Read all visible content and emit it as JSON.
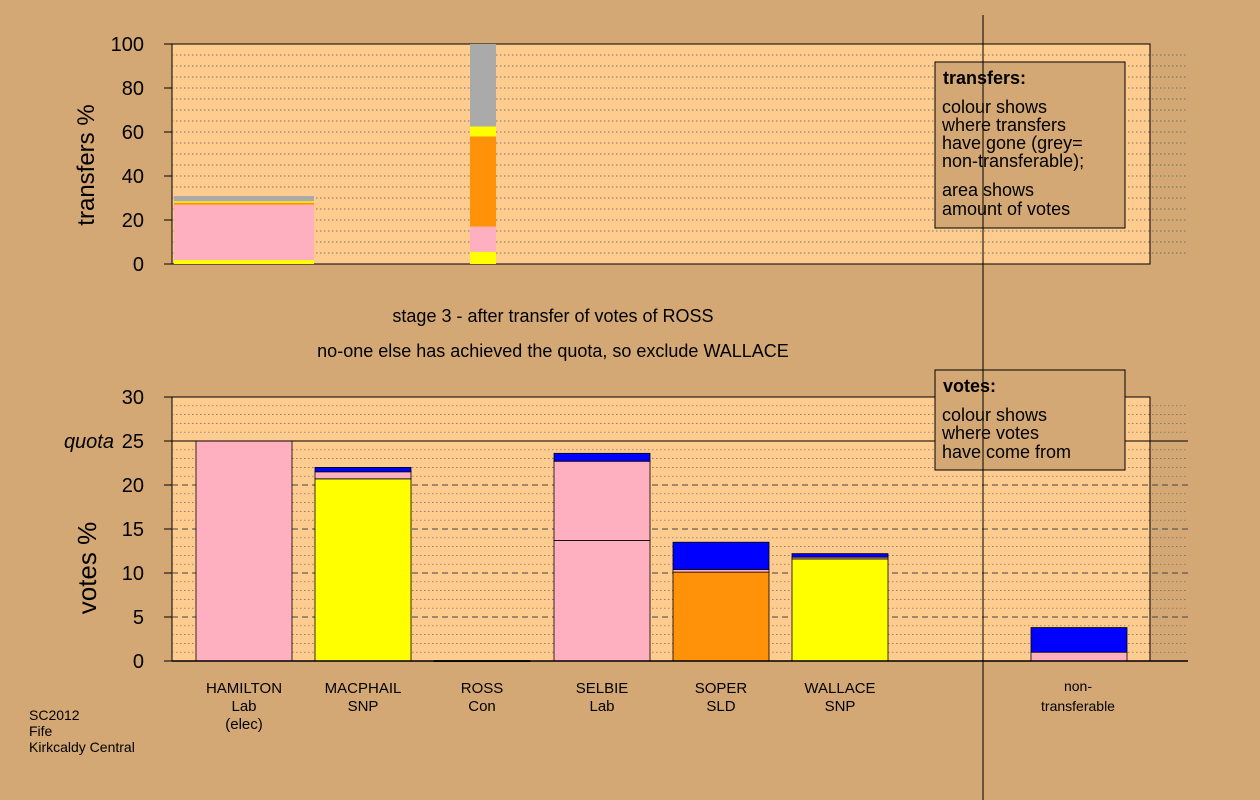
{
  "chart_data": [
    {
      "type": "bar",
      "stacked": true,
      "ylabel": "transfers %",
      "ylim": [
        0,
        100
      ],
      "yticks": [
        0,
        20,
        40,
        60,
        80,
        100
      ],
      "grid": true,
      "legend": {
        "title": "transfers:",
        "lines_a": [
          "colour shows",
          "where transfers",
          "have gone (grey=",
          "non-transferable);"
        ],
        "lines_b": [
          "area shows",
          "amount of votes"
        ],
        "placement": "top-right"
      },
      "columns": [
        {
          "name": "transfers-hamilton",
          "segments": [
            {
              "value": 1.8,
              "color": "#FFFF00"
            },
            {
              "value": 25.2,
              "color": "#FFB0C0"
            },
            {
              "value": 0.9,
              "color": "#FF9208"
            },
            {
              "value": 0.6,
              "color": "#FFFF00"
            },
            {
              "value": 2.4,
              "color": "#AAAAAA"
            }
          ]
        },
        {
          "name": "transfers-ross",
          "segments": [
            {
              "value": 5.5,
              "color": "#FFFF00"
            },
            {
              "value": 11.5,
              "color": "#FFB0C0"
            },
            {
              "value": 41,
              "color": "#FF9208"
            },
            {
              "value": 4.5,
              "color": "#FFFF00"
            },
            {
              "value": 37.5,
              "color": "#AAAAAA"
            }
          ]
        }
      ]
    },
    {
      "type": "bar",
      "stacked": true,
      "ylabel": "votes %",
      "ylim": [
        0,
        30
      ],
      "yticks": [
        0,
        5,
        10,
        15,
        20,
        25,
        30
      ],
      "quota": 25,
      "quota_label": "quota",
      "grid": true,
      "legend": {
        "title": "votes:",
        "lines": [
          "colour shows",
          "where votes",
          "have come from"
        ],
        "placement": "top-right"
      },
      "candidates": [
        {
          "name": "HAMILTON",
          "party": "Lab",
          "note": "(elec)",
          "segments": [
            {
              "value": 25,
              "color": "#FFB0C0"
            }
          ]
        },
        {
          "name": "MACPHAIL",
          "party": "SNP",
          "note": "",
          "segments": [
            {
              "value": 20.7,
              "color": "#FFFF00"
            },
            {
              "value": 0.8,
              "color": "#FFB0C0"
            },
            {
              "value": 0.5,
              "color": "#0000FF"
            }
          ]
        },
        {
          "name": "ROSS",
          "party": "Con",
          "note": "",
          "segments": [
            {
              "value": 0.05,
              "color": "#0000FF"
            }
          ]
        },
        {
          "name": "SELBIE",
          "party": "Lab",
          "note": "",
          "segments": [
            {
              "value": 13.7,
              "color": "#FFB0C0"
            },
            {
              "value": 9,
              "color": "#FFB0C0"
            },
            {
              "value": 0.9,
              "color": "#0000FF"
            }
          ]
        },
        {
          "name": "SOPER",
          "party": "SLD",
          "note": "",
          "segments": [
            {
              "value": 10.1,
              "color": "#FF9208"
            },
            {
              "value": 0.3,
              "color": "#FFB0C0"
            },
            {
              "value": 3.1,
              "color": "#0000FF"
            }
          ]
        },
        {
          "name": "WALLACE",
          "party": "SNP",
          "note": "",
          "segments": [
            {
              "value": 11.6,
              "color": "#FFFF00"
            },
            {
              "value": 0.2,
              "color": "#FFB0C0"
            },
            {
              "value": 0.4,
              "color": "#0000FF"
            }
          ]
        }
      ],
      "nontransferable": {
        "label_lines": [
          "non-",
          "transferable"
        ],
        "segments": [
          {
            "value": 1,
            "color": "#FFB0C0"
          },
          {
            "value": 2.8,
            "color": "#0000FF"
          }
        ]
      }
    }
  ],
  "stage": {
    "line1": "stage 3 - after transfer of votes of ROSS",
    "line2": "no-one else has achieved the quota, so exclude WALLACE"
  },
  "footer": {
    "lines": [
      "SC2012",
      "Fife",
      "Kirkcaldy Central"
    ]
  },
  "colors": {
    "background": "#D4A874",
    "plot": "#FFCC90"
  }
}
